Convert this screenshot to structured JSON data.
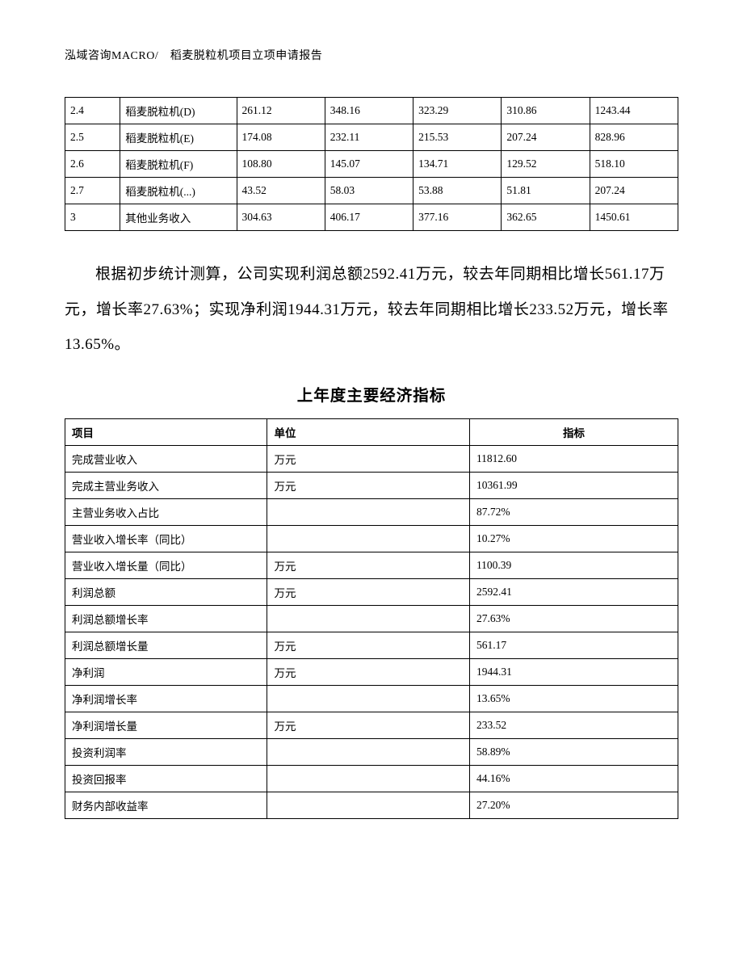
{
  "header": "泓域咨询MACRO/　稻麦脱粒机项目立项申请报告",
  "table1": {
    "rows": [
      [
        "2.4",
        "稻麦脱粒机(D)",
        "261.12",
        "348.16",
        "323.29",
        "310.86",
        "1243.44"
      ],
      [
        "2.5",
        "稻麦脱粒机(E)",
        "174.08",
        "232.11",
        "215.53",
        "207.24",
        "828.96"
      ],
      [
        "2.6",
        "稻麦脱粒机(F)",
        "108.80",
        "145.07",
        "134.71",
        "129.52",
        "518.10"
      ],
      [
        "2.7",
        "稻麦脱粒机(...)",
        "43.52",
        "58.03",
        "53.88",
        "51.81",
        "207.24"
      ],
      [
        "3",
        "其他业务收入",
        "304.63",
        "406.17",
        "377.16",
        "362.65",
        "1450.61"
      ]
    ]
  },
  "paragraph": "根据初步统计测算，公司实现利润总额2592.41万元，较去年同期相比增长561.17万元，增长率27.63%；实现净利润1944.31万元，较去年同期相比增长233.52万元，增长率13.65%。",
  "table2": {
    "title": "上年度主要经济指标",
    "headers": [
      "项目",
      "单位",
      "指标"
    ],
    "rows": [
      [
        "完成营业收入",
        "万元",
        "11812.60"
      ],
      [
        "完成主营业务收入",
        "万元",
        "10361.99"
      ],
      [
        "主营业务收入占比",
        "",
        "87.72%"
      ],
      [
        "营业收入增长率（同比）",
        "",
        "10.27%"
      ],
      [
        "营业收入增长量（同比）",
        "万元",
        "1100.39"
      ],
      [
        "利润总额",
        "万元",
        "2592.41"
      ],
      [
        "利润总额增长率",
        "",
        "27.63%"
      ],
      [
        "利润总额增长量",
        "万元",
        "561.17"
      ],
      [
        "净利润",
        "万元",
        "1944.31"
      ],
      [
        "净利润增长率",
        "",
        "13.65%"
      ],
      [
        "净利润增长量",
        "万元",
        "233.52"
      ],
      [
        "投资利润率",
        "",
        "58.89%"
      ],
      [
        "投资回报率",
        "",
        "44.16%"
      ],
      [
        "财务内部收益率",
        "",
        "27.20%"
      ]
    ]
  }
}
